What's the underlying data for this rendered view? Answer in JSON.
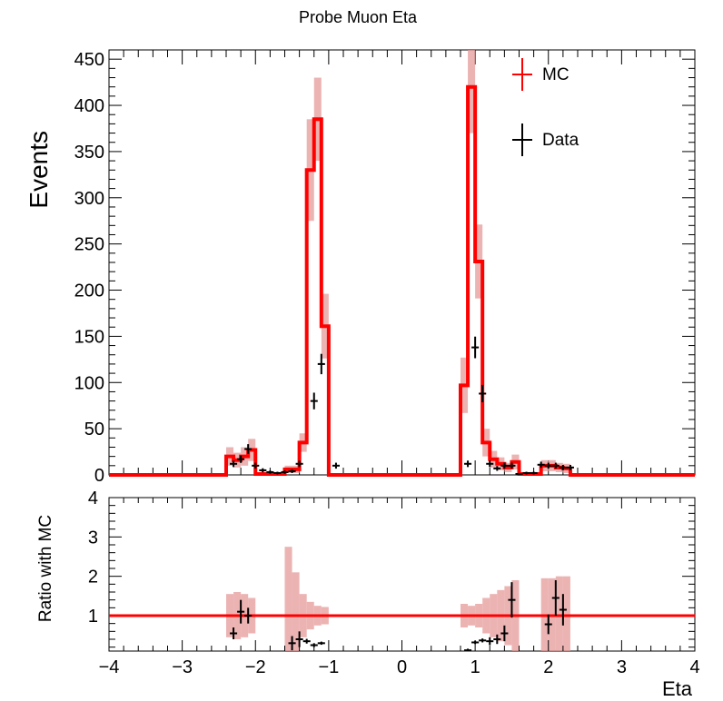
{
  "chart_data": [
    {
      "type": "histogram",
      "title": "Probe Muon Eta",
      "xlabel": "",
      "ylabel": "Events",
      "xlim": [
        -4,
        4
      ],
      "ylim": [
        0,
        460
      ],
      "x_ticks": [
        "−4",
        "−3",
        "−2",
        "−1",
        "0",
        "1",
        "2",
        "3",
        "4"
      ],
      "y_ticks": [
        "0",
        "50",
        "100",
        "150",
        "200",
        "250",
        "300",
        "350",
        "400",
        "450"
      ],
      "bin_width": 0.1,
      "legend": {
        "position": "top-right",
        "entries": [
          "MC",
          "Data"
        ]
      },
      "series": [
        {
          "name": "MC",
          "color": "#ff0000",
          "bins": [
            {
              "x": -2.35,
              "y": 20,
              "err": 10
            },
            {
              "x": -2.25,
              "y": 16,
              "err": 8
            },
            {
              "x": -2.15,
              "y": 20,
              "err": 10
            },
            {
              "x": -2.05,
              "y": 27,
              "err": 12
            },
            {
              "x": -1.95,
              "y": 1,
              "err": 1
            },
            {
              "x": -1.85,
              "y": 1,
              "err": 1
            },
            {
              "x": -1.75,
              "y": 1,
              "err": 1
            },
            {
              "x": -1.65,
              "y": 1,
              "err": 1
            },
            {
              "x": -1.55,
              "y": 6,
              "err": 4
            },
            {
              "x": -1.45,
              "y": 6,
              "err": 4
            },
            {
              "x": -1.35,
              "y": 35,
              "err": 10
            },
            {
              "x": -1.25,
              "y": 330,
              "err": 55
            },
            {
              "x": -1.15,
              "y": 385,
              "err": 45
            },
            {
              "x": -1.05,
              "y": 161,
              "err": 35
            },
            {
              "x": 0.85,
              "y": 97,
              "err": 30
            },
            {
              "x": 0.95,
              "y": 420,
              "err": 50
            },
            {
              "x": 1.05,
              "y": 231,
              "err": 40
            },
            {
              "x": 1.15,
              "y": 35,
              "err": 15
            },
            {
              "x": 1.25,
              "y": 17,
              "err": 9
            },
            {
              "x": 1.35,
              "y": 12,
              "err": 7
            },
            {
              "x": 1.45,
              "y": 8,
              "err": 5
            },
            {
              "x": 1.55,
              "y": 14,
              "err": 8
            },
            {
              "x": 1.65,
              "y": 1,
              "err": 1
            },
            {
              "x": 1.75,
              "y": 1,
              "err": 1
            },
            {
              "x": 1.85,
              "y": 1,
              "err": 1
            },
            {
              "x": 1.95,
              "y": 10,
              "err": 6
            },
            {
              "x": 2.05,
              "y": 10,
              "err": 6
            },
            {
              "x": 2.15,
              "y": 8,
              "err": 5
            },
            {
              "x": 2.25,
              "y": 7,
              "err": 5
            }
          ]
        },
        {
          "name": "Data",
          "color": "#000000",
          "points": [
            {
              "x": -2.3,
              "y": 12,
              "err": 3.5
            },
            {
              "x": -2.2,
              "y": 17,
              "err": 4
            },
            {
              "x": -2.1,
              "y": 28,
              "err": 5.3
            },
            {
              "x": -2.0,
              "y": 10,
              "err": 3.2
            },
            {
              "x": -1.9,
              "y": 5,
              "err": 2.2
            },
            {
              "x": -1.8,
              "y": 3,
              "err": 1.7
            },
            {
              "x": -1.7,
              "y": 2,
              "err": 1.4
            },
            {
              "x": -1.6,
              "y": 3,
              "err": 1.7
            },
            {
              "x": -1.5,
              "y": 4,
              "err": 2
            },
            {
              "x": -1.4,
              "y": 12,
              "err": 3.5
            },
            {
              "x": -1.2,
              "y": 80,
              "err": 9
            },
            {
              "x": -1.1,
              "y": 120,
              "err": 11
            },
            {
              "x": -0.9,
              "y": 10,
              "err": 3.2
            },
            {
              "x": 0.9,
              "y": 12,
              "err": 3.5
            },
            {
              "x": 1.0,
              "y": 138,
              "err": 11.7
            },
            {
              "x": 1.1,
              "y": 88,
              "err": 9.4
            },
            {
              "x": 1.2,
              "y": 12,
              "err": 3.5
            },
            {
              "x": 1.3,
              "y": 7,
              "err": 2.6
            },
            {
              "x": 1.4,
              "y": 10,
              "err": 3.2
            },
            {
              "x": 1.5,
              "y": 10,
              "err": 3.2
            },
            {
              "x": 1.6,
              "y": 1,
              "err": 1
            },
            {
              "x": 1.7,
              "y": 2,
              "err": 1.4
            },
            {
              "x": 1.8,
              "y": 2,
              "err": 1.4
            },
            {
              "x": 1.9,
              "y": 11,
              "err": 3.3
            },
            {
              "x": 2.0,
              "y": 10,
              "err": 3.2
            },
            {
              "x": 2.1,
              "y": 10,
              "err": 3.2
            },
            {
              "x": 2.2,
              "y": 8,
              "err": 2.8
            },
            {
              "x": 2.3,
              "y": 8,
              "err": 2.8
            }
          ]
        }
      ]
    },
    {
      "type": "ratio",
      "xlabel": "Eta",
      "ylabel": "Ratio with MC",
      "xlim": [
        -4,
        4
      ],
      "ylim": [
        0.1,
        4
      ],
      "x_ticks": [
        "−4",
        "−3",
        "−2",
        "−1",
        "0",
        "1",
        "2",
        "3",
        "4"
      ],
      "y_ticks": [
        "1",
        "2",
        "3",
        "4"
      ],
      "reference_line": 1,
      "ratio_band": [
        {
          "x": -2.35,
          "err": 0.55
        },
        {
          "x": -2.25,
          "err": 0.6
        },
        {
          "x": -2.15,
          "err": 0.55
        },
        {
          "x": -2.05,
          "err": 0.45
        },
        {
          "x": -1.55,
          "err": 1.75
        },
        {
          "x": -1.45,
          "err": 1.1
        },
        {
          "x": -1.35,
          "err": 0.55
        },
        {
          "x": -1.25,
          "err": 0.35
        },
        {
          "x": -1.15,
          "err": 0.25
        },
        {
          "x": -1.05,
          "err": 0.22
        },
        {
          "x": 0.85,
          "err": 0.3
        },
        {
          "x": 0.95,
          "err": 0.25
        },
        {
          "x": 1.05,
          "err": 0.3
        },
        {
          "x": 1.15,
          "err": 0.45
        },
        {
          "x": 1.25,
          "err": 0.55
        },
        {
          "x": 1.35,
          "err": 0.65
        },
        {
          "x": 1.45,
          "err": 0.75
        },
        {
          "x": 1.55,
          "err": 0.9
        },
        {
          "x": 1.95,
          "err": 0.95
        },
        {
          "x": 2.05,
          "err": 0.95
        },
        {
          "x": 2.15,
          "err": 1.0
        },
        {
          "x": 2.25,
          "err": 1.0
        }
      ],
      "points": [
        {
          "x": -2.3,
          "y": 0.55,
          "err": 0.15
        },
        {
          "x": -2.2,
          "y": 1.1,
          "err": 0.3
        },
        {
          "x": -2.1,
          "y": 1.0,
          "err": 0.2
        },
        {
          "x": -1.5,
          "y": 0.3,
          "err": 0.18
        },
        {
          "x": -1.4,
          "y": 0.4,
          "err": 0.2
        },
        {
          "x": -1.3,
          "y": 0.35,
          "err": 0.06
        },
        {
          "x": -1.2,
          "y": 0.25,
          "err": 0.05
        },
        {
          "x": -1.1,
          "y": 0.3,
          "err": 0.04
        },
        {
          "x": 0.9,
          "y": 0.12,
          "err": 0.04
        },
        {
          "x": 1.0,
          "y": 0.32,
          "err": 0.04
        },
        {
          "x": 1.1,
          "y": 0.37,
          "err": 0.05
        },
        {
          "x": 1.2,
          "y": 0.35,
          "err": 0.1
        },
        {
          "x": 1.3,
          "y": 0.4,
          "err": 0.12
        },
        {
          "x": 1.4,
          "y": 0.55,
          "err": 0.2
        },
        {
          "x": 1.5,
          "y": 1.4,
          "err": 0.45
        },
        {
          "x": 2.0,
          "y": 0.78,
          "err": 0.25
        },
        {
          "x": 2.1,
          "y": 1.45,
          "err": 0.45
        },
        {
          "x": 2.2,
          "y": 1.15,
          "err": 0.4
        }
      ]
    }
  ]
}
